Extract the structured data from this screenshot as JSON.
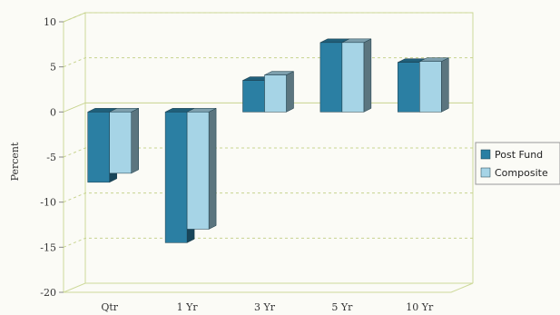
{
  "chart_data": {
    "type": "bar",
    "categories": [
      "Qtr",
      "1 Yr",
      "3 Yr",
      "5 Yr",
      "10 Yr"
    ],
    "series": [
      {
        "name": "Post Fund",
        "values": [
          -7.8,
          -14.5,
          3.5,
          7.7,
          5.5
        ]
      },
      {
        "name": "Composite",
        "values": [
          -6.8,
          -13.0,
          4.1,
          7.7,
          5.6
        ]
      }
    ],
    "title": "",
    "xlabel": "",
    "ylabel": "Percent",
    "ylim": [
      -20,
      10
    ],
    "yticks": [
      10,
      5,
      0,
      -5,
      -10,
      -15,
      -20
    ],
    "grid": true,
    "legend": "right",
    "colors": {
      "Post Fund": "#2b7fa3",
      "Composite": "#a6d4e6",
      "frame": "#cdd99a",
      "grid": "#c8d490"
    }
  }
}
